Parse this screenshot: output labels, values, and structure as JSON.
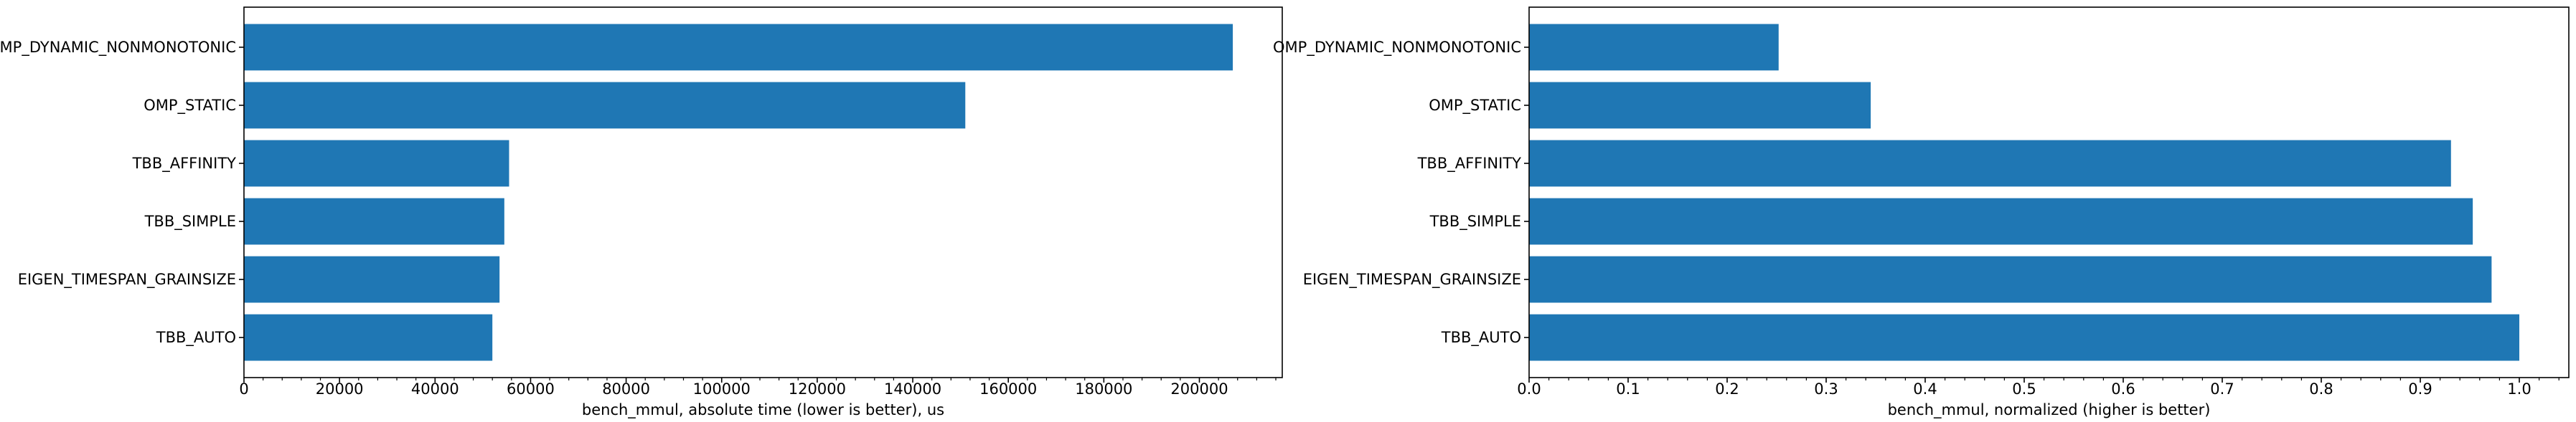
{
  "chart_data": [
    {
      "type": "bar",
      "orientation": "horizontal",
      "categories": [
        "TBB_AUTO",
        "EIGEN_TIMESPAN_GRAINSIZE",
        "TBB_SIMPLE",
        "TBB_AFFINITY",
        "OMP_STATIC",
        "OMP_DYNAMIC_NONMONOTONIC"
      ],
      "values": [
        52000,
        53500,
        54500,
        55500,
        151000,
        207000
      ],
      "xlabel": "bench_mmul, absolute time (lower is better), us",
      "ylabel": "",
      "title": "",
      "xlim": [
        0,
        217350
      ],
      "xticks": [
        0,
        20000,
        40000,
        60000,
        80000,
        100000,
        120000,
        140000,
        160000,
        180000,
        200000
      ],
      "xtick_labels": [
        "0",
        "20000",
        "40000",
        "60000",
        "80000",
        "100000",
        "120000",
        "140000",
        "160000",
        "180000",
        "200000"
      ],
      "grid": false,
      "color": "#1f77b4"
    },
    {
      "type": "bar",
      "orientation": "horizontal",
      "categories": [
        "TBB_AUTO",
        "EIGEN_TIMESPAN_GRAINSIZE",
        "TBB_SIMPLE",
        "TBB_AFFINITY",
        "OMP_STATIC",
        "OMP_DYNAMIC_NONMONOTONIC"
      ],
      "values": [
        1.0,
        0.972,
        0.953,
        0.931,
        0.345,
        0.252
      ],
      "xlabel": "bench_mmul, normalized (higher is better)",
      "ylabel": "",
      "title": "",
      "xlim": [
        0,
        1.05
      ],
      "xticks": [
        0,
        0.1,
        0.2,
        0.3,
        0.4,
        0.5,
        0.6,
        0.7,
        0.8,
        0.9,
        1.0
      ],
      "xtick_labels": [
        "0.0",
        "0.1",
        "0.2",
        "0.3",
        "0.4",
        "0.5",
        "0.6",
        "0.7",
        "0.8",
        "0.9",
        "1.0"
      ],
      "grid": false,
      "color": "#1f77b4"
    }
  ]
}
